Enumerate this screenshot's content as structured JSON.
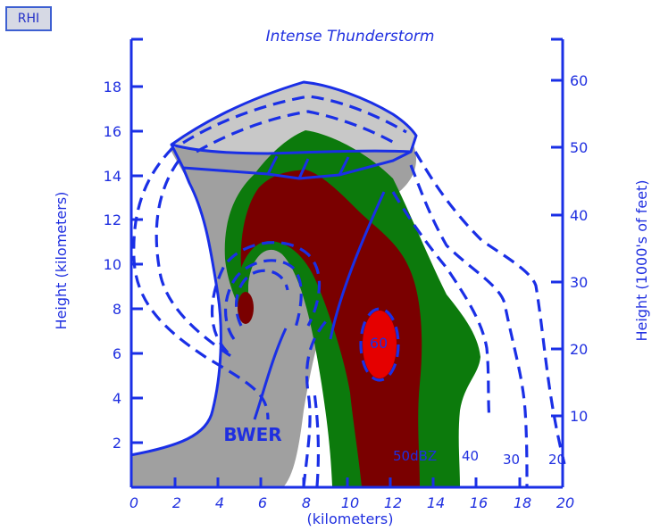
{
  "badge": "RHI",
  "title": "Intense Thunderstorm",
  "axes": {
    "left_label": "Height (kilometers)",
    "right_label": "Height (1000's of feet)",
    "bottom_label": "(kilometers)",
    "left_ticks": [
      "2",
      "4",
      "6",
      "8",
      "10",
      "12",
      "14",
      "16",
      "18"
    ],
    "right_ticks": [
      "10",
      "20",
      "30",
      "40",
      "50",
      "60"
    ],
    "bottom_ticks": [
      "0",
      "2",
      "4",
      "6",
      "8",
      "10",
      "12",
      "14",
      "16",
      "18",
      "20"
    ]
  },
  "annotations": {
    "bwer": "BWER",
    "core": "60",
    "contour_dbz": "50dBZ",
    "contour_40": "40",
    "contour_30": "30",
    "contour_20": "20"
  },
  "colors": {
    "axis": "#1a2fe6",
    "reflectivity_20": "#a0a0a0",
    "anvil": "#c8c8c8",
    "reflectivity_40": "#0c7a0c",
    "reflectivity_50": "#7a0000",
    "reflectivity_60": "#e50000",
    "badge_bg": "#d6d9e4"
  }
}
